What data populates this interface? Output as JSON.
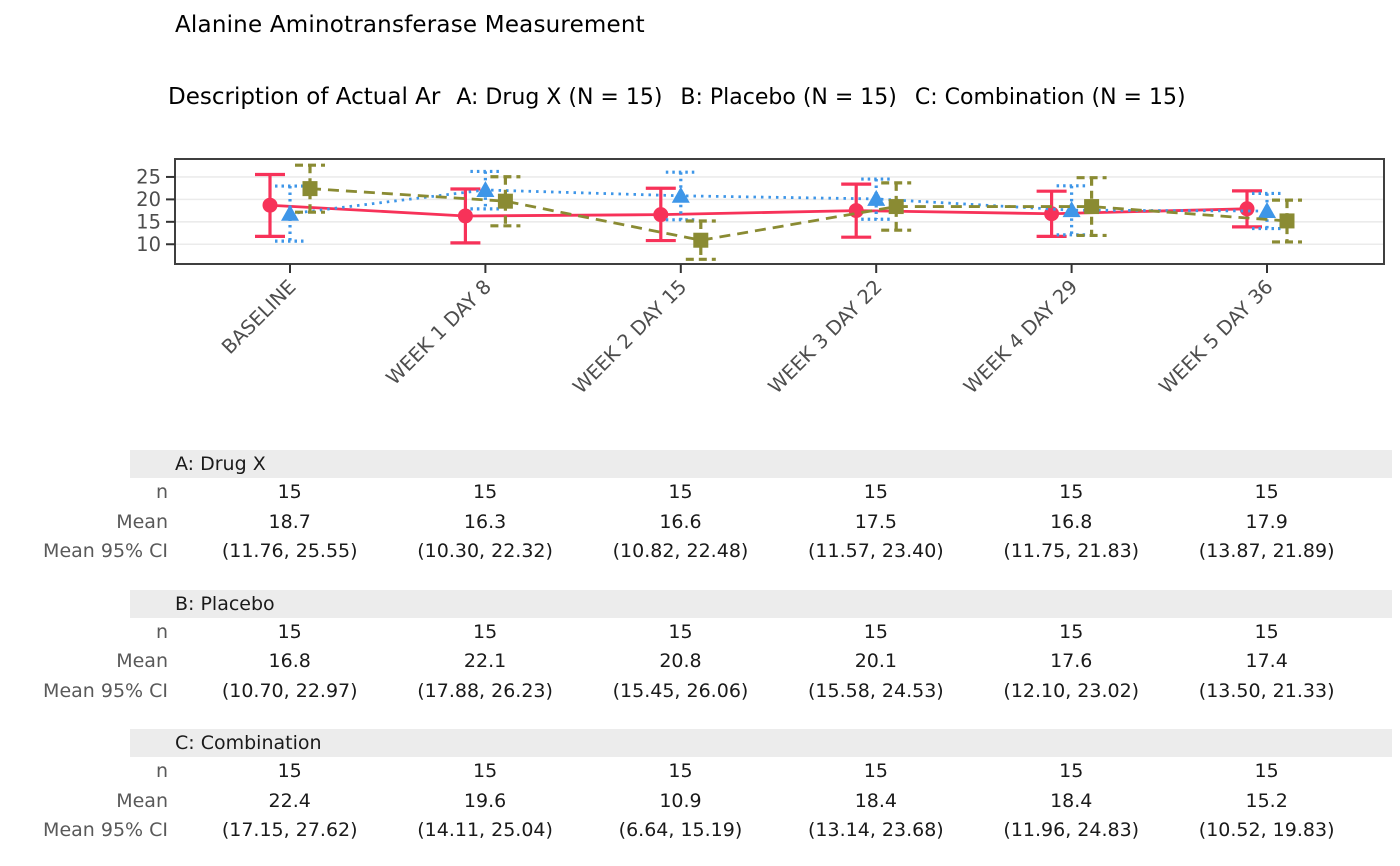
{
  "title": "Alanine Aminotransferase Measurement",
  "subtitle": "Description of Actual Ar",
  "legend": {
    "position": "top",
    "items": [
      {
        "label": "A: Drug X (N = 15)",
        "color": "#f73259",
        "marker": "circle",
        "line_style": "solid"
      },
      {
        "label": "B: Placebo (N = 15)",
        "color": "#3e96e8",
        "marker": "triangle",
        "line_style": "dotted"
      },
      {
        "label": "C: Combination (N = 15)",
        "color": "#8a8b33",
        "marker": "square",
        "line_style": "dashed"
      }
    ]
  },
  "chart_data": {
    "type": "line",
    "title": "Alanine Aminotransferase Measurement",
    "subtitle": "Description of Actual Ar",
    "xlabel": "",
    "ylabel": "",
    "categories": [
      "BASELINE",
      "WEEK 1 DAY 8",
      "WEEK 2 DAY 15",
      "WEEK 3 DAY 22",
      "WEEK 4 DAY 29",
      "WEEK 5 DAY 36"
    ],
    "yticks": [
      10,
      15,
      20,
      25
    ],
    "ylim": [
      5.6,
      29.0
    ],
    "grid": "horizontal",
    "legend_position": "top",
    "error_bars": "mean 95% CI",
    "series": [
      {
        "name": "A: Drug X (N = 15)",
        "color": "#f73259",
        "marker": "circle",
        "line_style": "solid",
        "values": [
          18.7,
          16.3,
          16.6,
          17.5,
          16.8,
          17.9
        ],
        "ci_lower": [
          11.76,
          10.3,
          10.82,
          11.57,
          11.75,
          13.87
        ],
        "ci_upper": [
          25.55,
          22.32,
          22.48,
          23.4,
          21.83,
          21.89
        ]
      },
      {
        "name": "B: Placebo (N = 15)",
        "color": "#3e96e8",
        "marker": "triangle",
        "line_style": "dotted",
        "values": [
          16.8,
          22.1,
          20.8,
          20.1,
          17.6,
          17.4
        ],
        "ci_lower": [
          10.7,
          17.88,
          15.45,
          15.58,
          12.1,
          13.5
        ],
        "ci_upper": [
          22.97,
          26.23,
          26.06,
          24.53,
          23.02,
          21.33
        ]
      },
      {
        "name": "C: Combination (N = 15)",
        "color": "#8a8b33",
        "marker": "square",
        "line_style": "dashed",
        "values": [
          22.4,
          19.6,
          10.9,
          18.4,
          18.4,
          15.2
        ],
        "ci_lower": [
          17.15,
          14.11,
          6.64,
          13.14,
          11.96,
          10.52
        ],
        "ci_upper": [
          27.62,
          25.04,
          15.19,
          23.68,
          24.83,
          19.83
        ]
      }
    ]
  },
  "table": {
    "sections": [
      {
        "header": "A: Drug X",
        "rows": [
          {
            "label": "n",
            "values": [
              "15",
              "15",
              "15",
              "15",
              "15",
              "15"
            ]
          },
          {
            "label": "Mean",
            "values": [
              "18.7",
              "16.3",
              "16.6",
              "17.5",
              "16.8",
              "17.9"
            ]
          },
          {
            "label": "Mean 95% CI",
            "values": [
              "(11.76, 25.55)",
              "(10.30, 22.32)",
              "(10.82, 22.48)",
              "(11.57, 23.40)",
              "(11.75, 21.83)",
              "(13.87, 21.89)"
            ]
          }
        ]
      },
      {
        "header": "B: Placebo",
        "rows": [
          {
            "label": "n",
            "values": [
              "15",
              "15",
              "15",
              "15",
              "15",
              "15"
            ]
          },
          {
            "label": "Mean",
            "values": [
              "16.8",
              "22.1",
              "20.8",
              "20.1",
              "17.6",
              "17.4"
            ]
          },
          {
            "label": "Mean 95% CI",
            "values": [
              "(10.70, 22.97)",
              "(17.88, 26.23)",
              "(15.45, 26.06)",
              "(15.58, 24.53)",
              "(12.10, 23.02)",
              "(13.50, 21.33)"
            ]
          }
        ]
      },
      {
        "header": "C: Combination",
        "rows": [
          {
            "label": "n",
            "values": [
              "15",
              "15",
              "15",
              "15",
              "15",
              "15"
            ]
          },
          {
            "label": "Mean",
            "values": [
              "22.4",
              "19.6",
              "10.9",
              "18.4",
              "18.4",
              "15.2"
            ]
          },
          {
            "label": "Mean 95% CI",
            "values": [
              "(17.15, 27.62)",
              "(14.11, 25.04)",
              "(6.64, 15.19)",
              "(13.14, 23.68)",
              "(11.96, 24.83)",
              "(10.52, 19.83)"
            ]
          }
        ]
      }
    ]
  },
  "colors": {
    "drug_x": "#f73259",
    "placebo": "#3e96e8",
    "combination": "#8a8b33",
    "gridline": "#ebebeb",
    "panel_border": "#3f3f3f",
    "axis_text": "#4d4d4d",
    "table_label": "#595959",
    "section_header_bg": "#ececec"
  }
}
